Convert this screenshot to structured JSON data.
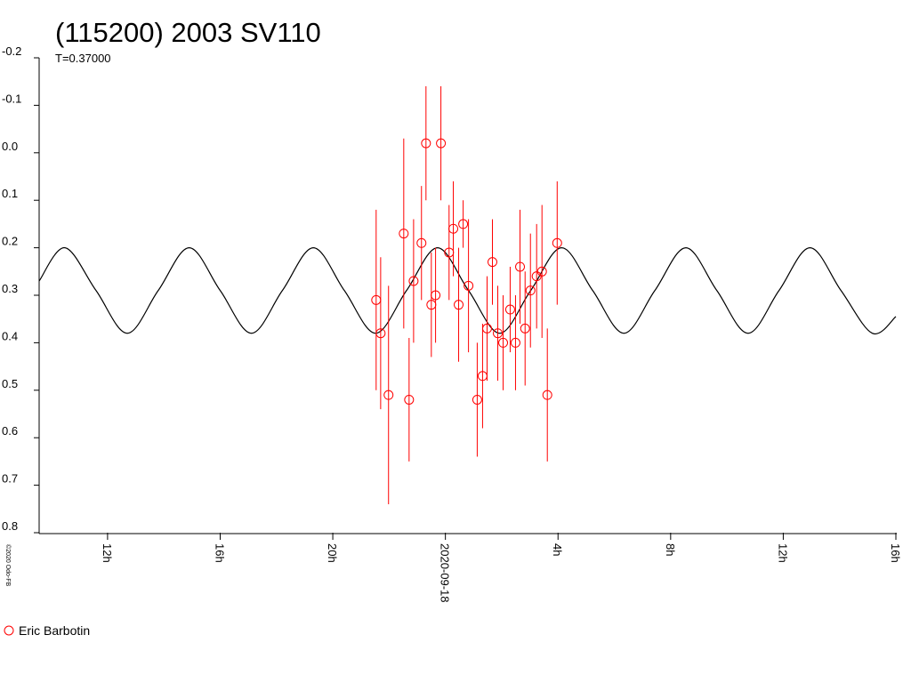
{
  "chart_data": {
    "type": "scatter",
    "title": "(115200) 2003 SV110",
    "subtitle": "T=0.37000",
    "credit": "©2020 Odo-FB",
    "y_inverted": true,
    "xlim": [
      9.57,
      40
    ],
    "ylim": [
      -0.2,
      0.8
    ],
    "xticks": [
      {
        "value": 12,
        "label": "12h"
      },
      {
        "value": 16,
        "label": "16h"
      },
      {
        "value": 20,
        "label": "20h"
      },
      {
        "value": 24,
        "label": "2020-09-18"
      },
      {
        "value": 28,
        "label": "4h"
      },
      {
        "value": 32,
        "label": "8h"
      },
      {
        "value": 36,
        "label": "12h"
      },
      {
        "value": 40,
        "label": "16h"
      }
    ],
    "yticks": [
      -0.2,
      -0.1,
      {
        "value": 0,
        "label": "0.0"
      },
      0.1,
      0.2,
      0.3,
      0.4,
      0.5,
      0.6,
      0.7,
      0.8
    ],
    "series": [
      {
        "name": "Eric Barbotin",
        "color": "#ff0000",
        "x": [
          21.54,
          21.7,
          21.98,
          22.52,
          22.71,
          22.87,
          23.15,
          23.31,
          23.5,
          23.65,
          23.84,
          24.13,
          24.28,
          24.47,
          24.63,
          24.82,
          25.13,
          25.32,
          25.48,
          25.67,
          25.86,
          26.05,
          26.3,
          26.49,
          26.65,
          26.83,
          27.02,
          27.24,
          27.43,
          27.62,
          27.97
        ],
        "values": [
          0.31,
          0.38,
          0.51,
          0.17,
          0.52,
          0.27,
          0.19,
          -0.02,
          0.32,
          0.3,
          -0.02,
          0.21,
          0.16,
          0.32,
          0.15,
          0.28,
          0.52,
          0.47,
          0.37,
          0.23,
          0.38,
          0.4,
          0.33,
          0.4,
          0.24,
          0.37,
          0.29,
          0.26,
          0.25,
          0.51,
          0.19
        ],
        "errors": [
          0.19,
          0.16,
          0.23,
          0.2,
          0.13,
          0.13,
          0.12,
          0.12,
          0.11,
          0.1,
          0.12,
          0.1,
          0.1,
          0.12,
          0.05,
          0.14,
          0.12,
          0.11,
          0.11,
          0.09,
          0.1,
          0.1,
          0.09,
          0.1,
          0.12,
          0.12,
          0.12,
          0.11,
          0.14,
          0.14,
          0.13
        ]
      }
    ],
    "curve": {
      "color": "#000000",
      "x": [
        9.57,
        10.49,
        11.59,
        12.7,
        13.8,
        14.9,
        16.0,
        17.11,
        18.21,
        19.31,
        20.41,
        21.52,
        22.62,
        23.72,
        24.82,
        25.93,
        27.03,
        28.13,
        29.23,
        30.34,
        31.44,
        32.54,
        33.64,
        34.75,
        35.85,
        36.95,
        38.05,
        39.16,
        40.0
      ],
      "values": [
        0.27,
        0.2,
        0.29,
        0.38,
        0.29,
        0.2,
        0.29,
        0.38,
        0.29,
        0.2,
        0.29,
        0.38,
        0.29,
        0.2,
        0.29,
        0.38,
        0.29,
        0.2,
        0.29,
        0.38,
        0.29,
        0.2,
        0.29,
        0.38,
        0.29,
        0.2,
        0.29,
        0.38,
        0.345
      ]
    }
  }
}
